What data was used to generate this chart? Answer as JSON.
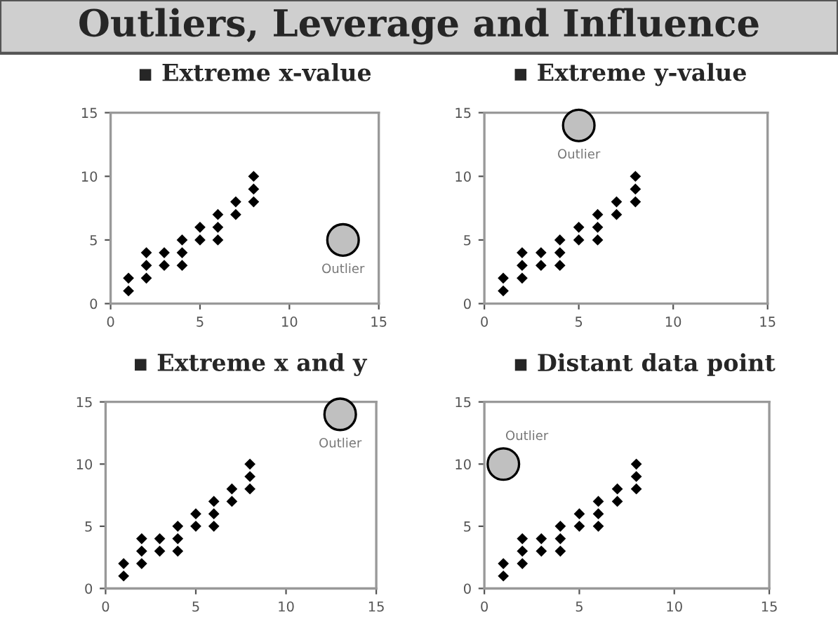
{
  "chart_data": [
    {
      "type": "scatter",
      "title": "▪ Extreme x-value",
      "xlim": [
        0,
        15
      ],
      "ylim": [
        0,
        15
      ],
      "xticks": [
        0,
        5,
        10,
        15
      ],
      "yticks": [
        0,
        5,
        10,
        15
      ],
      "grid": false,
      "annotations": [
        "Outliers, Leverage and Influence",
        {
          "text": "Outlier",
          "x": 13,
          "y": 5
        }
      ],
      "series": [
        {
          "color": "#000000",
          "marker": "diamond",
          "x": [
            1,
            1,
            2,
            2,
            2,
            3,
            3,
            4,
            4,
            4,
            5,
            5,
            6,
            6,
            6,
            7,
            7,
            8,
            8,
            8
          ],
          "values": [
            1,
            2,
            2,
            3,
            4,
            3,
            4,
            3,
            4,
            5,
            5,
            6,
            5,
            6,
            7,
            7,
            8,
            8,
            9,
            10
          ]
        },
        {
          "color": "#c0c0c0",
          "marker": "circle",
          "x": [
            13
          ],
          "values": [
            5
          ]
        }
      ]
    },
    {
      "type": "scatter",
      "title": "▪ Extreme y-value",
      "xlim": [
        0,
        15
      ],
      "ylim": [
        0,
        15
      ],
      "xticks": [
        0,
        5,
        10,
        15
      ],
      "yticks": [
        0,
        5,
        10,
        15
      ],
      "grid": false,
      "annotations": [
        {
          "text": "Outlier",
          "x": 5,
          "y": 14
        }
      ],
      "series": [
        {
          "color": "#000000",
          "marker": "diamond",
          "x": [
            1,
            1,
            2,
            2,
            2,
            3,
            3,
            4,
            4,
            4,
            5,
            5,
            6,
            6,
            6,
            7,
            7,
            8,
            8,
            8
          ],
          "values": [
            1,
            2,
            2,
            3,
            4,
            3,
            4,
            3,
            4,
            5,
            5,
            6,
            5,
            6,
            7,
            7,
            8,
            8,
            9,
            10
          ]
        },
        {
          "color": "#c0c0c0",
          "marker": "circle",
          "x": [
            5
          ],
          "values": [
            14
          ]
        }
      ]
    },
    {
      "type": "scatter",
      "title": "▪ Extreme x and y",
      "xlim": [
        0,
        15
      ],
      "ylim": [
        0,
        15
      ],
      "xticks": [
        0,
        5,
        10,
        15
      ],
      "yticks": [
        0,
        5,
        10,
        15
      ],
      "grid": false,
      "annotations": [
        {
          "text": "Outlier",
          "x": 13,
          "y": 14
        }
      ],
      "series": [
        {
          "color": "#000000",
          "marker": "diamond",
          "x": [
            1,
            1,
            2,
            2,
            2,
            3,
            3,
            4,
            4,
            4,
            5,
            5,
            6,
            6,
            6,
            7,
            7,
            8,
            8,
            8
          ],
          "values": [
            1,
            2,
            2,
            3,
            4,
            3,
            4,
            3,
            4,
            5,
            5,
            6,
            5,
            6,
            7,
            7,
            8,
            8,
            9,
            10
          ]
        },
        {
          "color": "#c0c0c0",
          "marker": "circle",
          "x": [
            13
          ],
          "values": [
            14
          ]
        }
      ]
    },
    {
      "type": "scatter",
      "title": "▪ Distant data point",
      "xlim": [
        0,
        15
      ],
      "ylim": [
        0,
        15
      ],
      "xticks": [
        0,
        5,
        10,
        15
      ],
      "yticks": [
        0,
        5,
        10,
        15
      ],
      "grid": false,
      "annotations": [
        {
          "text": "Outlier",
          "x": 1,
          "y": 10
        }
      ],
      "series": [
        {
          "color": "#000000",
          "marker": "diamond",
          "x": [
            1,
            1,
            2,
            2,
            2,
            3,
            3,
            4,
            4,
            4,
            5,
            5,
            6,
            6,
            6,
            7,
            7,
            8,
            8,
            8
          ],
          "values": [
            1,
            2,
            2,
            3,
            4,
            3,
            4,
            3,
            4,
            5,
            5,
            6,
            5,
            6,
            7,
            7,
            8,
            8,
            9,
            10
          ]
        },
        {
          "color": "#c0c0c0",
          "marker": "circle",
          "x": [
            1
          ],
          "values": [
            10
          ]
        }
      ]
    }
  ]
}
